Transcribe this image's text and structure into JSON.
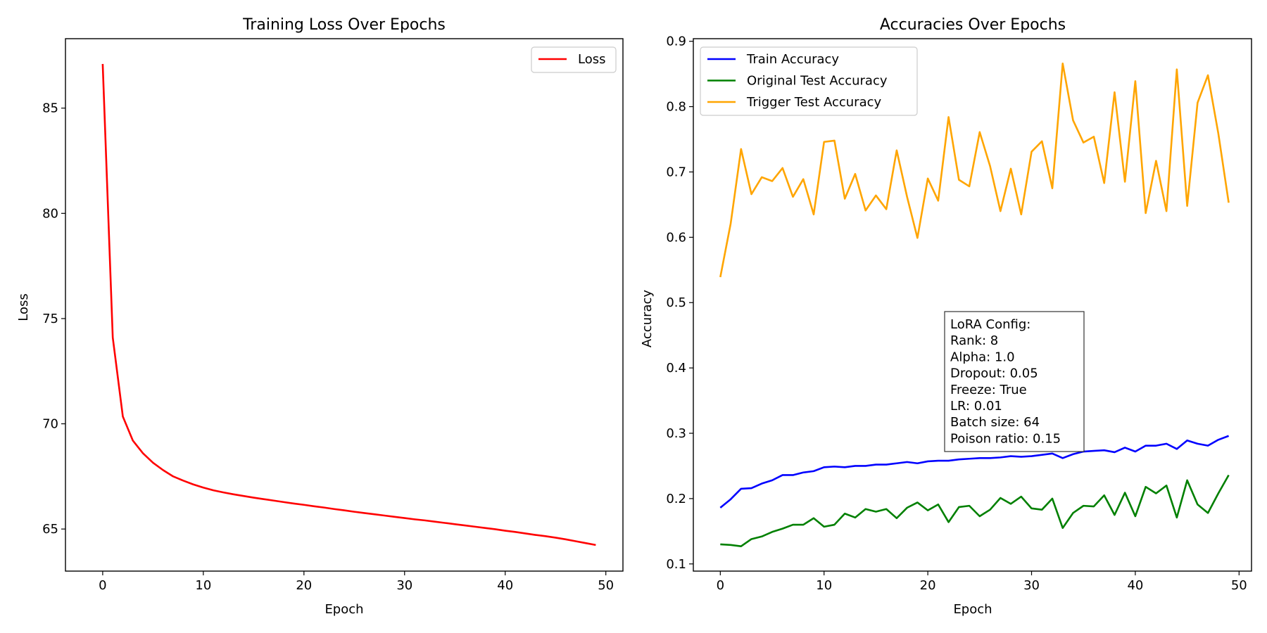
{
  "chart_data": [
    {
      "type": "line",
      "title": "Training Loss Over Epochs",
      "xlabel": "Epoch",
      "ylabel": "Loss",
      "xlim": [
        -3.7,
        51.7
      ],
      "ylim": [
        63.0,
        88.3
      ],
      "xticks": [
        0,
        10,
        20,
        30,
        40,
        50
      ],
      "yticks": [
        65,
        70,
        75,
        80,
        85
      ],
      "grid": false,
      "legend_position": "top-right",
      "x": [
        0,
        1,
        2,
        3,
        4,
        5,
        6,
        7,
        8,
        9,
        10,
        11,
        12,
        13,
        14,
        15,
        16,
        17,
        18,
        19,
        20,
        21,
        22,
        23,
        24,
        25,
        26,
        27,
        28,
        29,
        30,
        31,
        32,
        33,
        34,
        35,
        36,
        37,
        38,
        39,
        40,
        41,
        42,
        43,
        44,
        45,
        46,
        47,
        48,
        49
      ],
      "series": [
        {
          "name": "Loss",
          "color": "#ff0000",
          "values": [
            87.1,
            74.1,
            70.35,
            69.2,
            68.6,
            68.15,
            67.8,
            67.5,
            67.3,
            67.12,
            66.97,
            66.84,
            66.74,
            66.65,
            66.57,
            66.49,
            66.42,
            66.35,
            66.28,
            66.21,
            66.15,
            66.08,
            66.02,
            65.95,
            65.89,
            65.82,
            65.76,
            65.7,
            65.64,
            65.58,
            65.52,
            65.46,
            65.41,
            65.35,
            65.29,
            65.23,
            65.17,
            65.11,
            65.05,
            64.99,
            64.92,
            64.86,
            64.79,
            64.72,
            64.66,
            64.59,
            64.51,
            64.42,
            64.33,
            64.24
          ]
        }
      ]
    },
    {
      "type": "line",
      "title": "Accuracies Over Epochs",
      "xlabel": "Epoch",
      "ylabel": "Accuracy",
      "xlim": [
        -2.6,
        51.2
      ],
      "ylim": [
        0.089,
        0.904
      ],
      "xticks": [
        0,
        10,
        20,
        30,
        40,
        50
      ],
      "yticks": [
        0.1,
        0.2,
        0.3,
        0.4,
        0.5,
        0.6,
        0.7,
        0.8,
        0.9
      ],
      "grid": false,
      "legend_position": "top-left",
      "x": [
        0,
        1,
        2,
        3,
        4,
        5,
        6,
        7,
        8,
        9,
        10,
        11,
        12,
        13,
        14,
        15,
        16,
        17,
        18,
        19,
        20,
        21,
        22,
        23,
        24,
        25,
        26,
        27,
        28,
        29,
        30,
        31,
        32,
        33,
        34,
        35,
        36,
        37,
        38,
        39,
        40,
        41,
        42,
        43,
        44,
        45,
        46,
        47,
        48,
        49
      ],
      "series": [
        {
          "name": "Train Accuracy",
          "color": "#0000ff",
          "values": [
            0.186,
            0.199,
            0.215,
            0.216,
            0.223,
            0.228,
            0.236,
            0.236,
            0.24,
            0.242,
            0.248,
            0.249,
            0.248,
            0.25,
            0.25,
            0.252,
            0.252,
            0.254,
            0.256,
            0.254,
            0.257,
            0.258,
            0.258,
            0.26,
            0.261,
            0.262,
            0.262,
            0.263,
            0.265,
            0.264,
            0.265,
            0.267,
            0.269,
            0.262,
            0.268,
            0.272,
            0.273,
            0.274,
            0.271,
            0.278,
            0.272,
            0.281,
            0.281,
            0.284,
            0.276,
            0.289,
            0.284,
            0.281,
            0.29,
            0.296
          ]
        },
        {
          "name": "Original Test Accuracy",
          "color": "#008000",
          "values": [
            0.13,
            0.129,
            0.127,
            0.138,
            0.142,
            0.149,
            0.154,
            0.16,
            0.16,
            0.17,
            0.157,
            0.16,
            0.177,
            0.171,
            0.184,
            0.18,
            0.184,
            0.17,
            0.186,
            0.194,
            0.182,
            0.191,
            0.164,
            0.187,
            0.189,
            0.173,
            0.183,
            0.201,
            0.192,
            0.203,
            0.185,
            0.183,
            0.2,
            0.155,
            0.178,
            0.189,
            0.188,
            0.205,
            0.175,
            0.209,
            0.173,
            0.218,
            0.208,
            0.22,
            0.171,
            0.228,
            0.191,
            0.178,
            0.208,
            0.236
          ]
        },
        {
          "name": "Trigger Test Accuracy",
          "color": "#ffa500",
          "values": [
            0.539,
            0.621,
            0.735,
            0.666,
            0.692,
            0.686,
            0.706,
            0.662,
            0.689,
            0.635,
            0.746,
            0.748,
            0.659,
            0.697,
            0.641,
            0.664,
            0.643,
            0.733,
            0.662,
            0.599,
            0.69,
            0.656,
            0.784,
            0.688,
            0.678,
            0.761,
            0.709,
            0.64,
            0.705,
            0.635,
            0.731,
            0.747,
            0.675,
            0.866,
            0.779,
            0.745,
            0.754,
            0.683,
            0.822,
            0.685,
            0.839,
            0.637,
            0.717,
            0.64,
            0.857,
            0.648,
            0.806,
            0.848,
            0.759,
            0.653
          ]
        }
      ],
      "annotation": {
        "lines": [
          "LoRA Config:",
          "Rank: 8",
          "Alpha: 1.0",
          "Dropout: 0.05",
          "Freeze: True",
          "LR: 0.01",
          "Batch size: 64",
          "Poison ratio: 0.15"
        ]
      }
    }
  ]
}
